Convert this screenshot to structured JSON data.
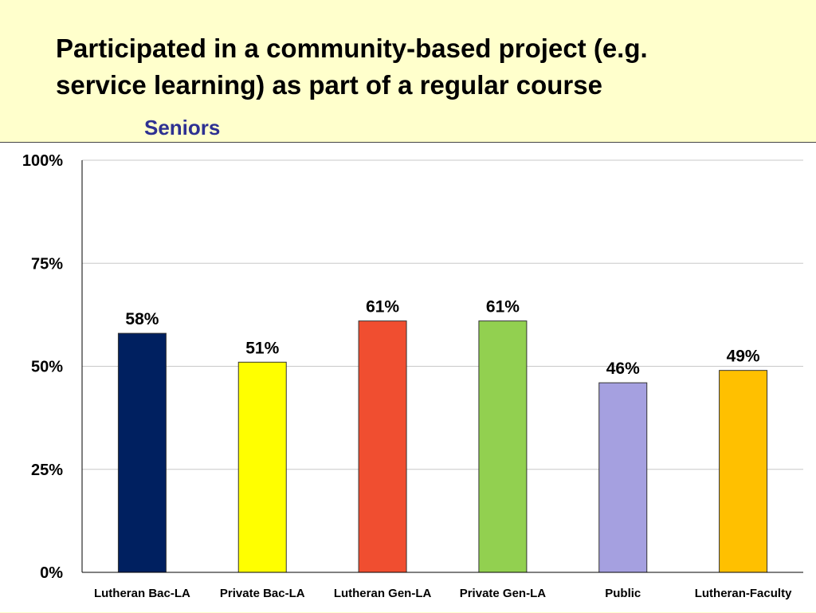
{
  "slide": {
    "title_line1": "Participated in a community-based project (e.g.",
    "title_line2": "service learning) as part of a regular course",
    "subtitle": "Seniors"
  },
  "chart_data": {
    "type": "bar",
    "categories": [
      "Lutheran Bac-LA",
      "Private Bac-LA",
      "Lutheran Gen-LA",
      "Private Gen-LA",
      "Public",
      "Lutheran-Faculty"
    ],
    "values": [
      58,
      51,
      61,
      61,
      46,
      49
    ],
    "data_labels": [
      "58%",
      "51%",
      "61%",
      "61%",
      "46%",
      "49%"
    ],
    "colors": [
      "#002060",
      "#ffff00",
      "#f04e30",
      "#92d050",
      "#a5a0e0",
      "#ffc000"
    ],
    "ylim": [
      0,
      100
    ],
    "yticks": [
      0,
      25,
      50,
      75,
      100
    ],
    "ytick_labels": [
      "0%",
      "25%",
      "50%",
      "75%",
      "100%"
    ],
    "grid": true,
    "title": "Participated in a community-based project (e.g. service learning) as part of a regular course",
    "xlabel": "",
    "ylabel": ""
  }
}
